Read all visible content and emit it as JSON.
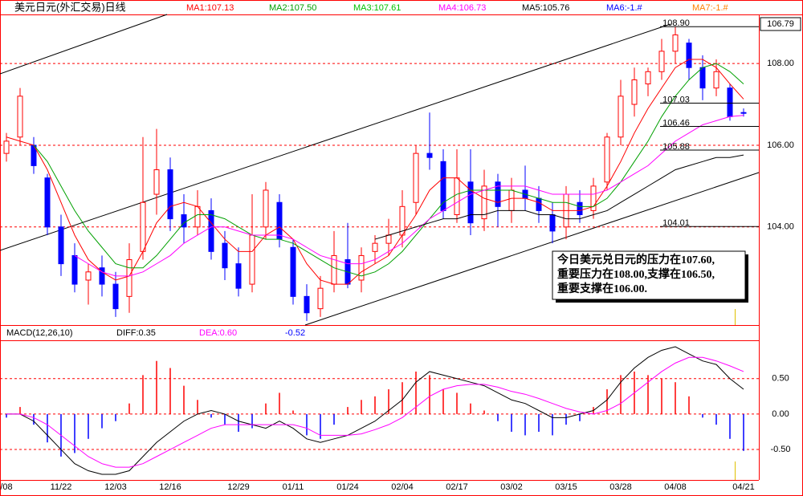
{
  "chart_data": [
    {
      "type": "candlestick",
      "title": "美元日元(外汇交易)日线",
      "categories": [
        "/08",
        null,
        null,
        null,
        "11/22",
        null,
        null,
        null,
        "12/03",
        null,
        null,
        null,
        "12/16",
        null,
        null,
        null,
        null,
        "12/29",
        null,
        null,
        null,
        "01/11",
        null,
        null,
        null,
        "01/24",
        null,
        null,
        null,
        "02/04",
        null,
        null,
        null,
        "02/17",
        null,
        null,
        null,
        "03/02",
        null,
        null,
        null,
        "03/15",
        null,
        null,
        null,
        "03/28",
        null,
        null,
        null,
        "04/08",
        null,
        null,
        null,
        null,
        "04/21"
      ],
      "open": [
        105.8,
        106.2,
        106.0,
        105.2,
        104.0,
        103.3,
        102.7,
        103.0,
        102.6,
        102.3,
        103.4,
        104.8,
        105.4,
        104.3,
        104.0,
        104.4,
        103.6,
        103.1,
        102.6,
        104.0,
        104.6,
        103.5,
        102.3,
        102.0,
        102.6,
        103.2,
        102.7,
        103.4,
        103.6,
        103.8,
        104.6,
        105.8,
        105.6,
        104.3,
        105.1,
        104.2,
        105.1,
        104.4,
        104.9,
        104.7,
        104.3,
        104.0,
        104.6,
        104.4,
        105.1,
        106.2,
        107.0,
        107.5,
        107.8,
        108.3,
        108.5,
        107.9,
        107.4,
        107.4,
        106.8
      ],
      "high": [
        106.3,
        107.4,
        106.2,
        105.3,
        104.3,
        103.6,
        103.1,
        103.3,
        102.9,
        103.6,
        106.2,
        106.4,
        105.7,
        104.8,
        104.9,
        104.7,
        103.9,
        103.5,
        104.8,
        105.1,
        104.8,
        103.7,
        102.6,
        102.8,
        103.9,
        104.1,
        103.5,
        103.8,
        104.2,
        104.9,
        106.0,
        106.8,
        105.9,
        105.9,
        105.9,
        105.4,
        105.3,
        105.2,
        105.5,
        105.0,
        104.6,
        105.0,
        104.9,
        105.2,
        106.3,
        107.6,
        107.9,
        107.9,
        108.6,
        108.9,
        108.6,
        108.2,
        108.1,
        107.5,
        106.9
      ],
      "low": [
        105.6,
        106.0,
        105.3,
        103.8,
        102.8,
        102.4,
        102.1,
        102.3,
        101.8,
        101.9,
        103.2,
        104.3,
        103.9,
        103.6,
        103.8,
        103.2,
        102.7,
        102.3,
        102.4,
        103.7,
        103.5,
        102.1,
        101.7,
        101.8,
        102.4,
        102.5,
        102.4,
        103.1,
        103.3,
        103.5,
        104.3,
        105.4,
        104.2,
        104.1,
        103.8,
        103.9,
        104.0,
        104.1,
        104.4,
        104.1,
        103.6,
        103.7,
        104.1,
        104.2,
        104.9,
        106.0,
        106.7,
        107.2,
        107.6,
        108.0,
        107.6,
        107.1,
        107.2,
        106.6,
        106.7
      ],
      "close": [
        106.1,
        107.2,
        105.5,
        104.0,
        103.1,
        102.6,
        102.9,
        102.6,
        102.0,
        103.2,
        104.6,
        105.4,
        104.2,
        104.0,
        104.5,
        103.4,
        103.0,
        102.5,
        103.8,
        104.9,
        103.7,
        102.3,
        101.9,
        102.5,
        103.3,
        102.6,
        103.3,
        103.6,
        103.8,
        104.5,
        105.8,
        105.7,
        104.4,
        105.2,
        104.1,
        105.0,
        104.5,
        104.9,
        104.7,
        104.4,
        103.9,
        104.8,
        104.3,
        105.0,
        106.2,
        107.2,
        107.6,
        107.8,
        108.3,
        108.7,
        107.9,
        107.4,
        107.8,
        106.7,
        106.79
      ],
      "up_color": "#ff0000",
      "down_color": "#0000ff",
      "series": [
        {
          "name": "MA1:107.13",
          "color": "#ff0000",
          "values": [
            106.2,
            106.1,
            106.0,
            105.4,
            104.6,
            103.8,
            103.2,
            102.9,
            102.7,
            102.8,
            103.4,
            104.1,
            104.5,
            104.6,
            104.5,
            104.1,
            103.7,
            103.4,
            103.4,
            103.8,
            104.0,
            103.7,
            103.1,
            102.7,
            102.6,
            102.6,
            102.9,
            103.1,
            103.3,
            103.8,
            104.3,
            104.9,
            105.2,
            105.2,
            104.9,
            104.7,
            104.6,
            104.7,
            104.7,
            104.6,
            104.4,
            104.4,
            104.4,
            104.5,
            105.0,
            105.6,
            106.3,
            106.9,
            107.4,
            107.9,
            108.1,
            108.1,
            107.9,
            107.5,
            107.13
          ]
        },
        {
          "name": "MA2:107.50",
          "color": "#00a000",
          "values": [
            null,
            null,
            106.0,
            105.6,
            105.0,
            104.4,
            103.9,
            103.5,
            103.1,
            103.0,
            103.0,
            103.3,
            103.7,
            104.1,
            104.3,
            104.3,
            104.2,
            104.0,
            103.8,
            103.7,
            103.7,
            103.6,
            103.4,
            103.2,
            103.0,
            102.9,
            102.8,
            102.9,
            103.1,
            103.4,
            103.8,
            104.2,
            104.6,
            104.8,
            104.9,
            104.9,
            104.9,
            104.9,
            104.8,
            104.7,
            104.6,
            104.6,
            104.5,
            104.5,
            104.7,
            105.1,
            105.6,
            106.1,
            106.7,
            107.2,
            107.6,
            107.9,
            108.0,
            107.8,
            107.5
          ]
        },
        {
          "name": "MA4:106.73",
          "color": "#ff00ff",
          "values": [
            null,
            null,
            null,
            null,
            null,
            103.3,
            103.1,
            102.9,
            102.8,
            102.8,
            102.9,
            103.1,
            103.3,
            103.6,
            103.8,
            104.0,
            104.0,
            103.9,
            103.8,
            103.8,
            103.8,
            103.7,
            103.5,
            103.3,
            103.2,
            103.1,
            103.1,
            103.2,
            103.4,
            103.6,
            103.9,
            104.2,
            104.4,
            104.6,
            104.8,
            104.9,
            105.0,
            105.0,
            105.0,
            104.9,
            104.8,
            104.8,
            104.8,
            104.8,
            104.9,
            105.1,
            105.3,
            105.5,
            105.8,
            106.1,
            106.3,
            106.5,
            106.6,
            106.7,
            106.73
          ]
        },
        {
          "name": "MA5:105.76",
          "color": "#000000",
          "values": [
            null,
            null,
            null,
            null,
            null,
            null,
            null,
            null,
            null,
            null,
            null,
            null,
            null,
            null,
            null,
            null,
            null,
            null,
            null,
            null,
            null,
            null,
            null,
            null,
            null,
            null,
            null,
            103.7,
            103.8,
            103.9,
            104.0,
            104.1,
            104.2,
            104.2,
            104.3,
            104.3,
            104.4,
            104.4,
            104.4,
            104.3,
            104.3,
            104.2,
            104.2,
            104.3,
            104.4,
            104.6,
            104.8,
            105.0,
            105.2,
            105.4,
            105.5,
            105.6,
            105.7,
            105.7,
            105.76
          ]
        }
      ],
      "extra_labels": [
        {
          "text": "MA3:107.61",
          "color": "#00c000"
        },
        {
          "text": "MA6:-1.#",
          "color": "#0000ff"
        },
        {
          "text": "MA7:-1.#",
          "color": "#ff8000"
        }
      ],
      "ylim": [
        101.6,
        109.2
      ],
      "yticks": [
        {
          "value": 104,
          "label": "104.00"
        },
        {
          "value": 106,
          "label": "106.00"
        },
        {
          "value": 108,
          "label": "108.00"
        }
      ],
      "grid": true,
      "price_lines": {
        "values": [
          108.9,
          107.03,
          106.46,
          105.88,
          104.01
        ],
        "value_labels": [
          "108.90",
          "107.03",
          "106.46",
          "105.88",
          "104.01"
        ]
      },
      "last_price": 106.79,
      "note": [
        "今日美元兑日元的压力在107.60,",
        "重要压力在108.00,支撑在106.50,",
        "重要支撑在106.00."
      ]
    },
    {
      "type": "macd",
      "title": "MACD(12,26,10)",
      "values": [
        -0.05,
        0.1,
        -0.15,
        -0.4,
        -0.6,
        -0.55,
        -0.35,
        -0.2,
        -0.1,
        0.15,
        0.55,
        0.75,
        0.65,
        0.4,
        0.2,
        -0.05,
        -0.15,
        -0.25,
        -0.2,
        0.15,
        0.3,
        0.05,
        -0.3,
        -0.35,
        -0.15,
        0.1,
        0.2,
        0.25,
        0.35,
        0.45,
        0.6,
        0.55,
        0.35,
        0.3,
        0.15,
        0.05,
        -0.1,
        -0.25,
        -0.3,
        -0.25,
        -0.3,
        -0.15,
        -0.1,
        0.1,
        0.35,
        0.55,
        0.6,
        0.55,
        0.5,
        0.45,
        0.25,
        -0.05,
        -0.15,
        -0.35,
        -0.52
      ],
      "up_color": "#ff0000",
      "down_color": "#0000ff",
      "value_label": "-0.52",
      "series": [
        {
          "name": "DIFF:0.35",
          "color": "#000000",
          "values": [
            0.0,
            0.0,
            -0.1,
            -0.3,
            -0.5,
            -0.7,
            -0.8,
            -0.85,
            -0.85,
            -0.8,
            -0.6,
            -0.4,
            -0.25,
            -0.1,
            0.0,
            0.05,
            0.0,
            -0.1,
            -0.15,
            -0.2,
            -0.1,
            -0.2,
            -0.35,
            -0.4,
            -0.35,
            -0.3,
            -0.2,
            -0.1,
            0.05,
            0.2,
            0.45,
            0.6,
            0.55,
            0.5,
            0.45,
            0.4,
            0.3,
            0.2,
            0.15,
            0.05,
            -0.05,
            -0.05,
            0.0,
            0.05,
            0.2,
            0.45,
            0.65,
            0.8,
            0.9,
            0.95,
            0.85,
            0.75,
            0.7,
            0.5,
            0.35
          ]
        },
        {
          "name": "DEA:0.60",
          "color": "#ff00ff",
          "values": [
            0.0,
            0.0,
            -0.05,
            -0.15,
            -0.3,
            -0.45,
            -0.6,
            -0.7,
            -0.75,
            -0.75,
            -0.7,
            -0.6,
            -0.5,
            -0.4,
            -0.3,
            -0.2,
            -0.15,
            -0.15,
            -0.15,
            -0.15,
            -0.15,
            -0.15,
            -0.2,
            -0.3,
            -0.3,
            -0.3,
            -0.28,
            -0.22,
            -0.15,
            -0.05,
            0.1,
            0.25,
            0.35,
            0.4,
            0.42,
            0.42,
            0.38,
            0.32,
            0.28,
            0.22,
            0.15,
            0.08,
            0.03,
            0.0,
            0.05,
            0.15,
            0.3,
            0.45,
            0.6,
            0.72,
            0.8,
            0.8,
            0.75,
            0.68,
            0.6
          ]
        }
      ],
      "ylim": [
        -0.93,
        1.03
      ],
      "yticks": [
        {
          "value": 0.5,
          "label": "0.50"
        },
        {
          "value": 0,
          "label": "0.00"
        },
        {
          "value": -0.5,
          "label": "-0.50"
        }
      ],
      "grid": true
    }
  ]
}
